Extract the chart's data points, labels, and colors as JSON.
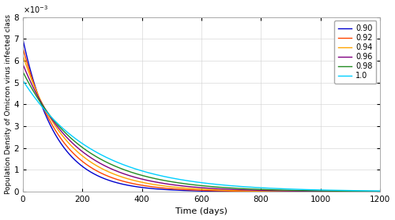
{
  "title": "",
  "xlabel": "Time (days)",
  "ylabel": "Population Density of Omicron virus infected class",
  "xlim": [
    0,
    1200
  ],
  "ylim": [
    0,
    0.008
  ],
  "ytick_multiplier": 0.001,
  "xticks": [
    0,
    200,
    400,
    600,
    800,
    1000,
    1200
  ],
  "yticks": [
    0,
    1,
    2,
    3,
    4,
    5,
    6,
    7,
    8
  ],
  "series": [
    {
      "label": "0.90",
      "color": "#0000CD",
      "decay": 0.009,
      "y0": 0.007
    },
    {
      "label": "0.92",
      "color": "#FF4500",
      "decay": 0.0078,
      "y0": 0.0066
    },
    {
      "label": "0.94",
      "color": "#FFA500",
      "decay": 0.0067,
      "y0": 0.00625
    },
    {
      "label": "0.96",
      "color": "#800080",
      "decay": 0.0058,
      "y0": 0.00585
    },
    {
      "label": "0.98",
      "color": "#228B22",
      "decay": 0.005,
      "y0": 0.0055
    },
    {
      "label": "1.0",
      "color": "#00CFFF",
      "decay": 0.0042,
      "y0": 0.0051
    }
  ],
  "grid": true,
  "legend_loc": "upper right",
  "background_color": "#ffffff",
  "linewidth": 1.0,
  "spine_color": "#aaaaaa"
}
